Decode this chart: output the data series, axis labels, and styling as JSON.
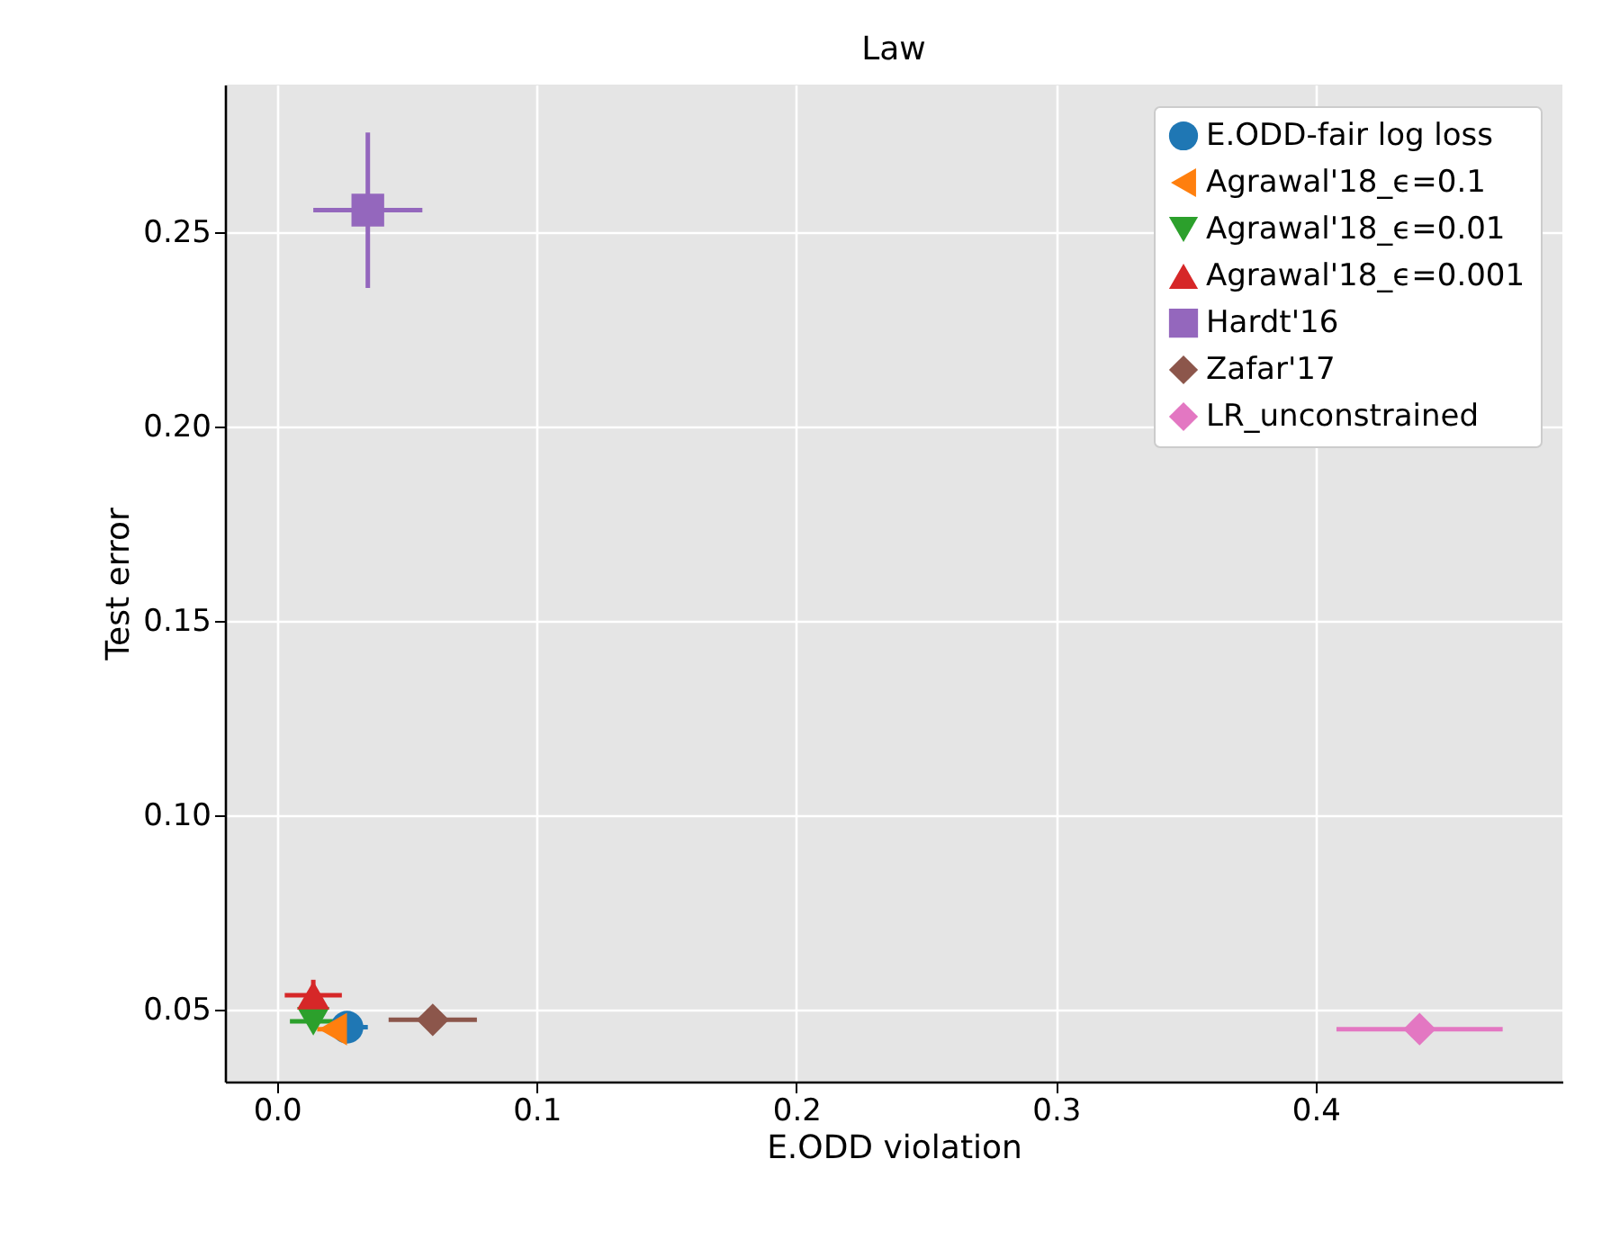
{
  "chart_data": {
    "type": "scatter",
    "title": "Law",
    "xlabel": "E.ODD violation",
    "ylabel": "Test error",
    "xlim": [
      -0.02,
      0.495
    ],
    "ylim": [
      0.0315,
      0.288
    ],
    "xticks": [
      {
        "value": 0,
        "label": "0.0"
      },
      {
        "value": 0.1,
        "label": "0.1"
      },
      {
        "value": 0.2,
        "label": "0.2"
      },
      {
        "value": 0.3,
        "label": "0.3"
      },
      {
        "value": 0.4,
        "label": "0.4"
      }
    ],
    "yticks": [
      {
        "value": 0.05,
        "label": "0.05"
      },
      {
        "value": 0.1,
        "label": "0.10"
      },
      {
        "value": 0.15,
        "label": "0.15"
      },
      {
        "value": 0.2,
        "label": "0.20"
      },
      {
        "value": 0.25,
        "label": "0.25"
      }
    ],
    "grid": true,
    "legend": "top right",
    "series": [
      {
        "name": "E.ODD-fair log loss",
        "color": "#1f77b4",
        "marker": "circle",
        "x": [
          0.027
        ],
        "values": [
          0.0455
        ],
        "xerrors": [
          0.008
        ],
        "errors": [
          null
        ]
      },
      {
        "name": "Agrawal'18_ϵ=0.1",
        "color": "#ff7f0e",
        "marker": "triangle-left",
        "x": [
          0.0215
        ],
        "values": [
          0.045
        ],
        "xerrors": [
          0.006
        ],
        "errors": [
          null
        ]
      },
      {
        "name": "Agrawal'18_ϵ=0.01",
        "color": "#2ca02c",
        "marker": "triangle-down",
        "x": [
          0.014
        ],
        "values": [
          0.047
        ],
        "xerrors": [
          0.009
        ],
        "errors": [
          null
        ]
      },
      {
        "name": "Agrawal'18_ϵ=0.001",
        "color": "#d62728",
        "marker": "triangle-up",
        "x": [
          0.014
        ],
        "values": [
          0.0537
        ],
        "xerrors": [
          0.011
        ],
        "errors": [
          0.004
        ]
      },
      {
        "name": "Hardt'16",
        "color": "#9467bd",
        "marker": "square",
        "x": [
          0.035
        ],
        "values": [
          0.2557
        ],
        "xerrors": [
          0.021
        ],
        "errors": [
          0.02
        ]
      },
      {
        "name": "Zafar'17",
        "color": "#8c564b",
        "marker": "diamond",
        "x": [
          0.06
        ],
        "values": [
          0.0474
        ],
        "xerrors": [
          0.017
        ],
        "errors": [
          null
        ]
      },
      {
        "name": "LR_unconstrained",
        "color": "#e377c2",
        "marker": "diamond",
        "x": [
          0.44
        ],
        "values": [
          0.045
        ],
        "xerrors": [
          0.032
        ],
        "errors": [
          null
        ]
      }
    ]
  }
}
